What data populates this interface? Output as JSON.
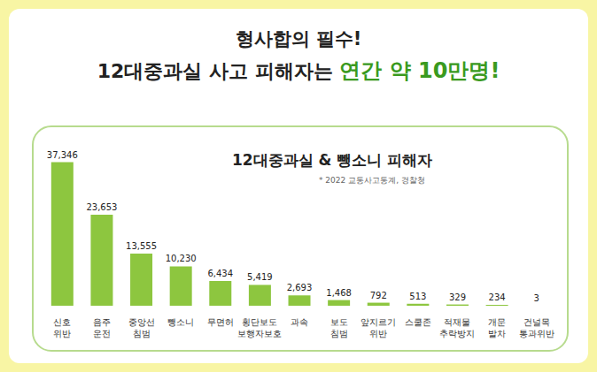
{
  "header": {
    "line1": "형사합의 필수!",
    "line2": "12대중과실 사고 피해자는",
    "line2_highlight": "연간 약 10만명!"
  },
  "chart_data": {
    "type": "bar",
    "title": "12대중과실 & 뺑소니 피해자",
    "subtitle": "* 2022 교통사고통계, 경찰청",
    "categories": [
      "신호 위반",
      "음주 운전",
      "중앙선 침범",
      "뺑소니",
      "무면허",
      "횡단보도 보행자보호",
      "과속",
      "보도 침범",
      "앞지르기 위반",
      "스쿨존",
      "적재물 추락방지",
      "개문 발차",
      "건널목 통과위반"
    ],
    "values": [
      37346,
      23653,
      13555,
      10230,
      6434,
      5419,
      2693,
      1468,
      792,
      513,
      329,
      234,
      3
    ],
    "value_labels": [
      "37,346",
      "23,653",
      "13,555",
      "10,230",
      "6,434",
      "5,419",
      "2,693",
      "1,468",
      "792",
      "513",
      "329",
      "234",
      "3"
    ],
    "color": "#8dc63f",
    "ylim": [
      0,
      40000
    ],
    "data_labels": true,
    "tick_labels": "x",
    "grid": false
  }
}
